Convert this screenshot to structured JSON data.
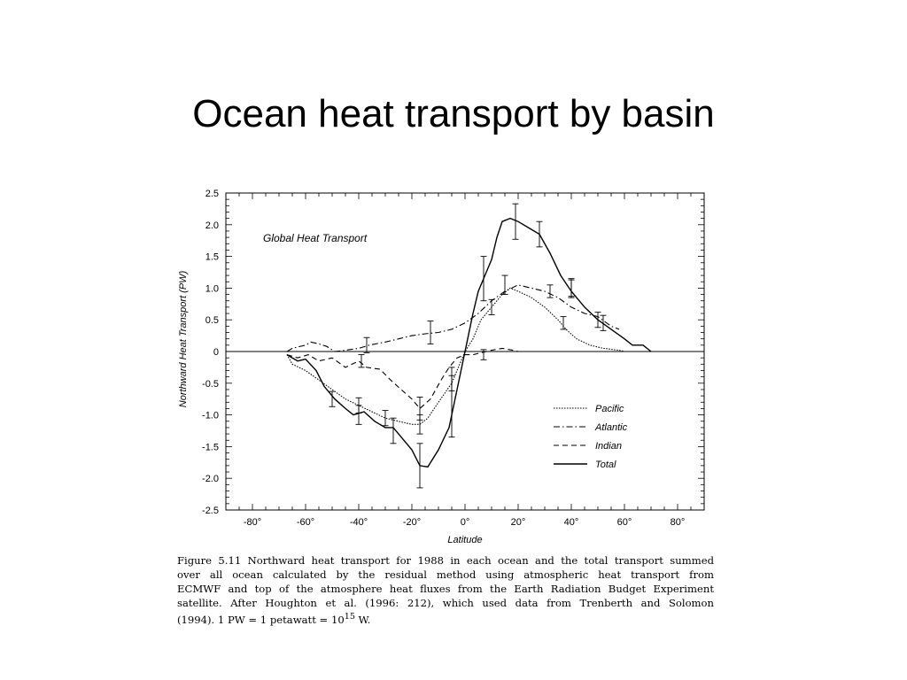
{
  "slide": {
    "title": "Ocean heat transport by basin"
  },
  "chart_data": {
    "type": "line",
    "title": "Global Heat Transport",
    "xlabel": "Latitude",
    "ylabel": "Northward Heat Transport (PW)",
    "xlim": [
      -90,
      90
    ],
    "ylim": [
      -2.5,
      2.5
    ],
    "x_ticks": [
      -80,
      -60,
      -40,
      -20,
      0,
      20,
      40,
      60,
      80
    ],
    "x_tick_labels": [
      "-80°",
      "-60°",
      "-40°",
      "-20°",
      "0°",
      "20°",
      "40°",
      "60°",
      "80°"
    ],
    "y_ticks": [
      2.5,
      2.0,
      1.5,
      1.0,
      0.5,
      0,
      -0.5,
      -1.0,
      -1.5,
      -2.0,
      -2.5
    ],
    "y_tick_labels": [
      "2.5",
      "2.0",
      "1.5",
      "1.0",
      "0.5",
      "0",
      "-0.5",
      "-1.0",
      "-1.5",
      "-2.0",
      "-2.5"
    ],
    "grid": false,
    "zero_line": true,
    "legend_position": "bottom-right",
    "series": [
      {
        "name": "Pacific",
        "dash": "dotted",
        "points": [
          [
            -67,
            -0.05
          ],
          [
            -65,
            -0.2
          ],
          [
            -60,
            -0.3
          ],
          [
            -55,
            -0.45
          ],
          [
            -50,
            -0.6
          ],
          [
            -45,
            -0.75
          ],
          [
            -40,
            -0.85
          ],
          [
            -35,
            -0.95
          ],
          [
            -30,
            -1.05
          ],
          [
            -25,
            -1.1
          ],
          [
            -20,
            -1.15
          ],
          [
            -17,
            -1.15
          ],
          [
            -14,
            -1.05
          ],
          [
            -10,
            -0.8
          ],
          [
            -5,
            -0.5
          ],
          [
            -2,
            -0.2
          ],
          [
            0,
            0
          ],
          [
            3,
            0.2
          ],
          [
            6,
            0.5
          ],
          [
            10,
            0.7
          ],
          [
            14,
            0.9
          ],
          [
            17,
            1.0
          ],
          [
            20,
            0.95
          ],
          [
            25,
            0.85
          ],
          [
            30,
            0.7
          ],
          [
            35,
            0.5
          ],
          [
            38,
            0.35
          ],
          [
            42,
            0.2
          ],
          [
            47,
            0.1
          ],
          [
            52,
            0.05
          ],
          [
            58,
            0.02
          ],
          [
            60,
            0.0
          ]
        ],
        "error_bars": [
          [
            -40,
            -0.85,
            0.12
          ],
          [
            -30,
            -1.05,
            0.12
          ],
          [
            -17,
            -1.15,
            0.15
          ],
          [
            -5,
            -0.5,
            0.12
          ],
          [
            10,
            0.7,
            0.12
          ],
          [
            37,
            0.45,
            0.1
          ]
        ]
      },
      {
        "name": "Atlantic",
        "dash": "dash-dot",
        "points": [
          [
            -67,
            0.0
          ],
          [
            -65,
            0.05
          ],
          [
            -60,
            0.1
          ],
          [
            -58,
            0.15
          ],
          [
            -55,
            0.12
          ],
          [
            -52,
            0.08
          ],
          [
            -49,
            0.0
          ],
          [
            -45,
            0.02
          ],
          [
            -40,
            0.05
          ],
          [
            -36,
            0.1
          ],
          [
            -30,
            0.15
          ],
          [
            -25,
            0.2
          ],
          [
            -20,
            0.25
          ],
          [
            -15,
            0.28
          ],
          [
            -10,
            0.3
          ],
          [
            -5,
            0.35
          ],
          [
            0,
            0.45
          ],
          [
            5,
            0.6
          ],
          [
            10,
            0.8
          ],
          [
            15,
            0.95
          ],
          [
            20,
            1.05
          ],
          [
            25,
            1.0
          ],
          [
            30,
            0.95
          ],
          [
            35,
            0.85
          ],
          [
            40,
            0.7
          ],
          [
            45,
            0.6
          ],
          [
            50,
            0.55
          ],
          [
            55,
            0.4
          ],
          [
            58,
            0.35
          ]
        ],
        "error_bars": [
          [
            -37,
            0.1,
            0.12
          ],
          [
            -13,
            0.3,
            0.18
          ],
          [
            15,
            1.05,
            0.15
          ],
          [
            32,
            0.95,
            0.1
          ],
          [
            40,
            1.0,
            0.13
          ],
          [
            50,
            0.5,
            0.12
          ]
        ]
      },
      {
        "name": "Indian",
        "dash": "dashed",
        "points": [
          [
            -67,
            -0.05
          ],
          [
            -63,
            -0.1
          ],
          [
            -59,
            -0.05
          ],
          [
            -55,
            -0.15
          ],
          [
            -50,
            -0.1
          ],
          [
            -45,
            -0.25
          ],
          [
            -40,
            -0.15
          ],
          [
            -37,
            -0.25
          ],
          [
            -32,
            -0.28
          ],
          [
            -28,
            -0.45
          ],
          [
            -24,
            -0.6
          ],
          [
            -20,
            -0.75
          ],
          [
            -17,
            -0.9
          ],
          [
            -13,
            -0.75
          ],
          [
            -9,
            -0.45
          ],
          [
            -6,
            -0.25
          ],
          [
            -3,
            -0.1
          ],
          [
            0,
            -0.05
          ],
          [
            3,
            -0.05
          ],
          [
            6,
            -0.02
          ],
          [
            10,
            0.02
          ],
          [
            14,
            0.05
          ],
          [
            18,
            0.02
          ],
          [
            20,
            0.0
          ]
        ],
        "error_bars": [
          [
            -39,
            -0.15,
            0.1
          ],
          [
            -17,
            -0.9,
            0.18
          ],
          [
            7,
            -0.05,
            0.08
          ]
        ]
      },
      {
        "name": "Total",
        "dash": "solid",
        "points": [
          [
            -67,
            -0.05
          ],
          [
            -63,
            -0.15
          ],
          [
            -60,
            -0.12
          ],
          [
            -56,
            -0.3
          ],
          [
            -53,
            -0.55
          ],
          [
            -49,
            -0.75
          ],
          [
            -45,
            -0.9
          ],
          [
            -42,
            -1.0
          ],
          [
            -38,
            -0.95
          ],
          [
            -34,
            -1.1
          ],
          [
            -30,
            -1.2
          ],
          [
            -27,
            -1.2
          ],
          [
            -24,
            -1.35
          ],
          [
            -20,
            -1.55
          ],
          [
            -17,
            -1.8
          ],
          [
            -14,
            -1.82
          ],
          [
            -10,
            -1.55
          ],
          [
            -6,
            -1.2
          ],
          [
            -3,
            -0.6
          ],
          [
            0,
            0.0
          ],
          [
            3,
            0.6
          ],
          [
            5,
            0.95
          ],
          [
            8,
            1.25
          ],
          [
            10,
            1.45
          ],
          [
            12,
            1.8
          ],
          [
            14,
            2.05
          ],
          [
            17,
            2.1
          ],
          [
            20,
            2.05
          ],
          [
            24,
            1.95
          ],
          [
            28,
            1.85
          ],
          [
            32,
            1.55
          ],
          [
            36,
            1.2
          ],
          [
            40,
            0.95
          ],
          [
            45,
            0.7
          ],
          [
            50,
            0.5
          ],
          [
            55,
            0.35
          ],
          [
            60,
            0.2
          ],
          [
            63,
            0.1
          ],
          [
            67,
            0.1
          ],
          [
            70,
            0.0
          ]
        ],
        "error_bars": [
          [
            -50,
            -0.75,
            0.12
          ],
          [
            -40,
            -1.0,
            0.15
          ],
          [
            -27,
            -1.25,
            0.2
          ],
          [
            -17,
            -1.8,
            0.35
          ],
          [
            -5,
            -0.8,
            0.55
          ],
          [
            7,
            1.15,
            0.35
          ],
          [
            19,
            2.05,
            0.28
          ],
          [
            28,
            1.85,
            0.2
          ],
          [
            40,
            1.0,
            0.15
          ],
          [
            52,
            0.45,
            0.12
          ]
        ]
      }
    ]
  },
  "caption": {
    "lines": [
      "Figure 5.11 Northward heat transport for 1988 in each ocean and the total transport summed",
      "over all ocean calculated by the residual method using atmospheric heat transport from"
    ],
    "line3_sc": "ECMWF",
    "line3_rest": " and top of the atmosphere heat fluxes from the Earth Radiation Budget Experiment",
    "line4": "satellite.  After Houghton et al.  (1996: 212), which used data from Trenberth and Solomon",
    "line5_a": "(1994).  1 PW = 1 petawatt = 10",
    "line5_sup": "15",
    "line5_b": " W."
  }
}
